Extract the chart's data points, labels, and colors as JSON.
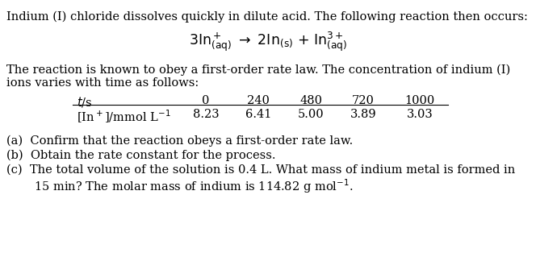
{
  "bg_color": "#ffffff",
  "text_color": "#000000",
  "intro_line": "Indium (I) chloride dissolves quickly in dilute acid. The following reaction then occurs:",
  "para1_line1": "The reaction is known to obey a first-order rate law. The concentration of indium (I)",
  "para1_line2": "ions varies with time as follows:",
  "table_header_label": "t/s",
  "table_header_vals": [
    "0",
    "240",
    "480",
    "720",
    "1000"
  ],
  "table_row_label": "[In$^+$]/mmol L$^{-1}$",
  "table_row_values": [
    "8.23",
    "6.41",
    "5.00",
    "3.89",
    "3.03"
  ],
  "q_a": "(a)  Confirm that the reaction obeys a first-order rate law.",
  "q_b": "(b)  Obtain the rate constant for the process.",
  "q_c1": "(c)  The total volume of the solution is 0.4 L. What mass of indium metal is formed in",
  "q_c2": "15 min? The molar mass of indium is 114.82 g mol$^{-1}$.",
  "font_size": 10.5,
  "font_family": "DejaVu Serif",
  "eq_font_size": 12.5
}
